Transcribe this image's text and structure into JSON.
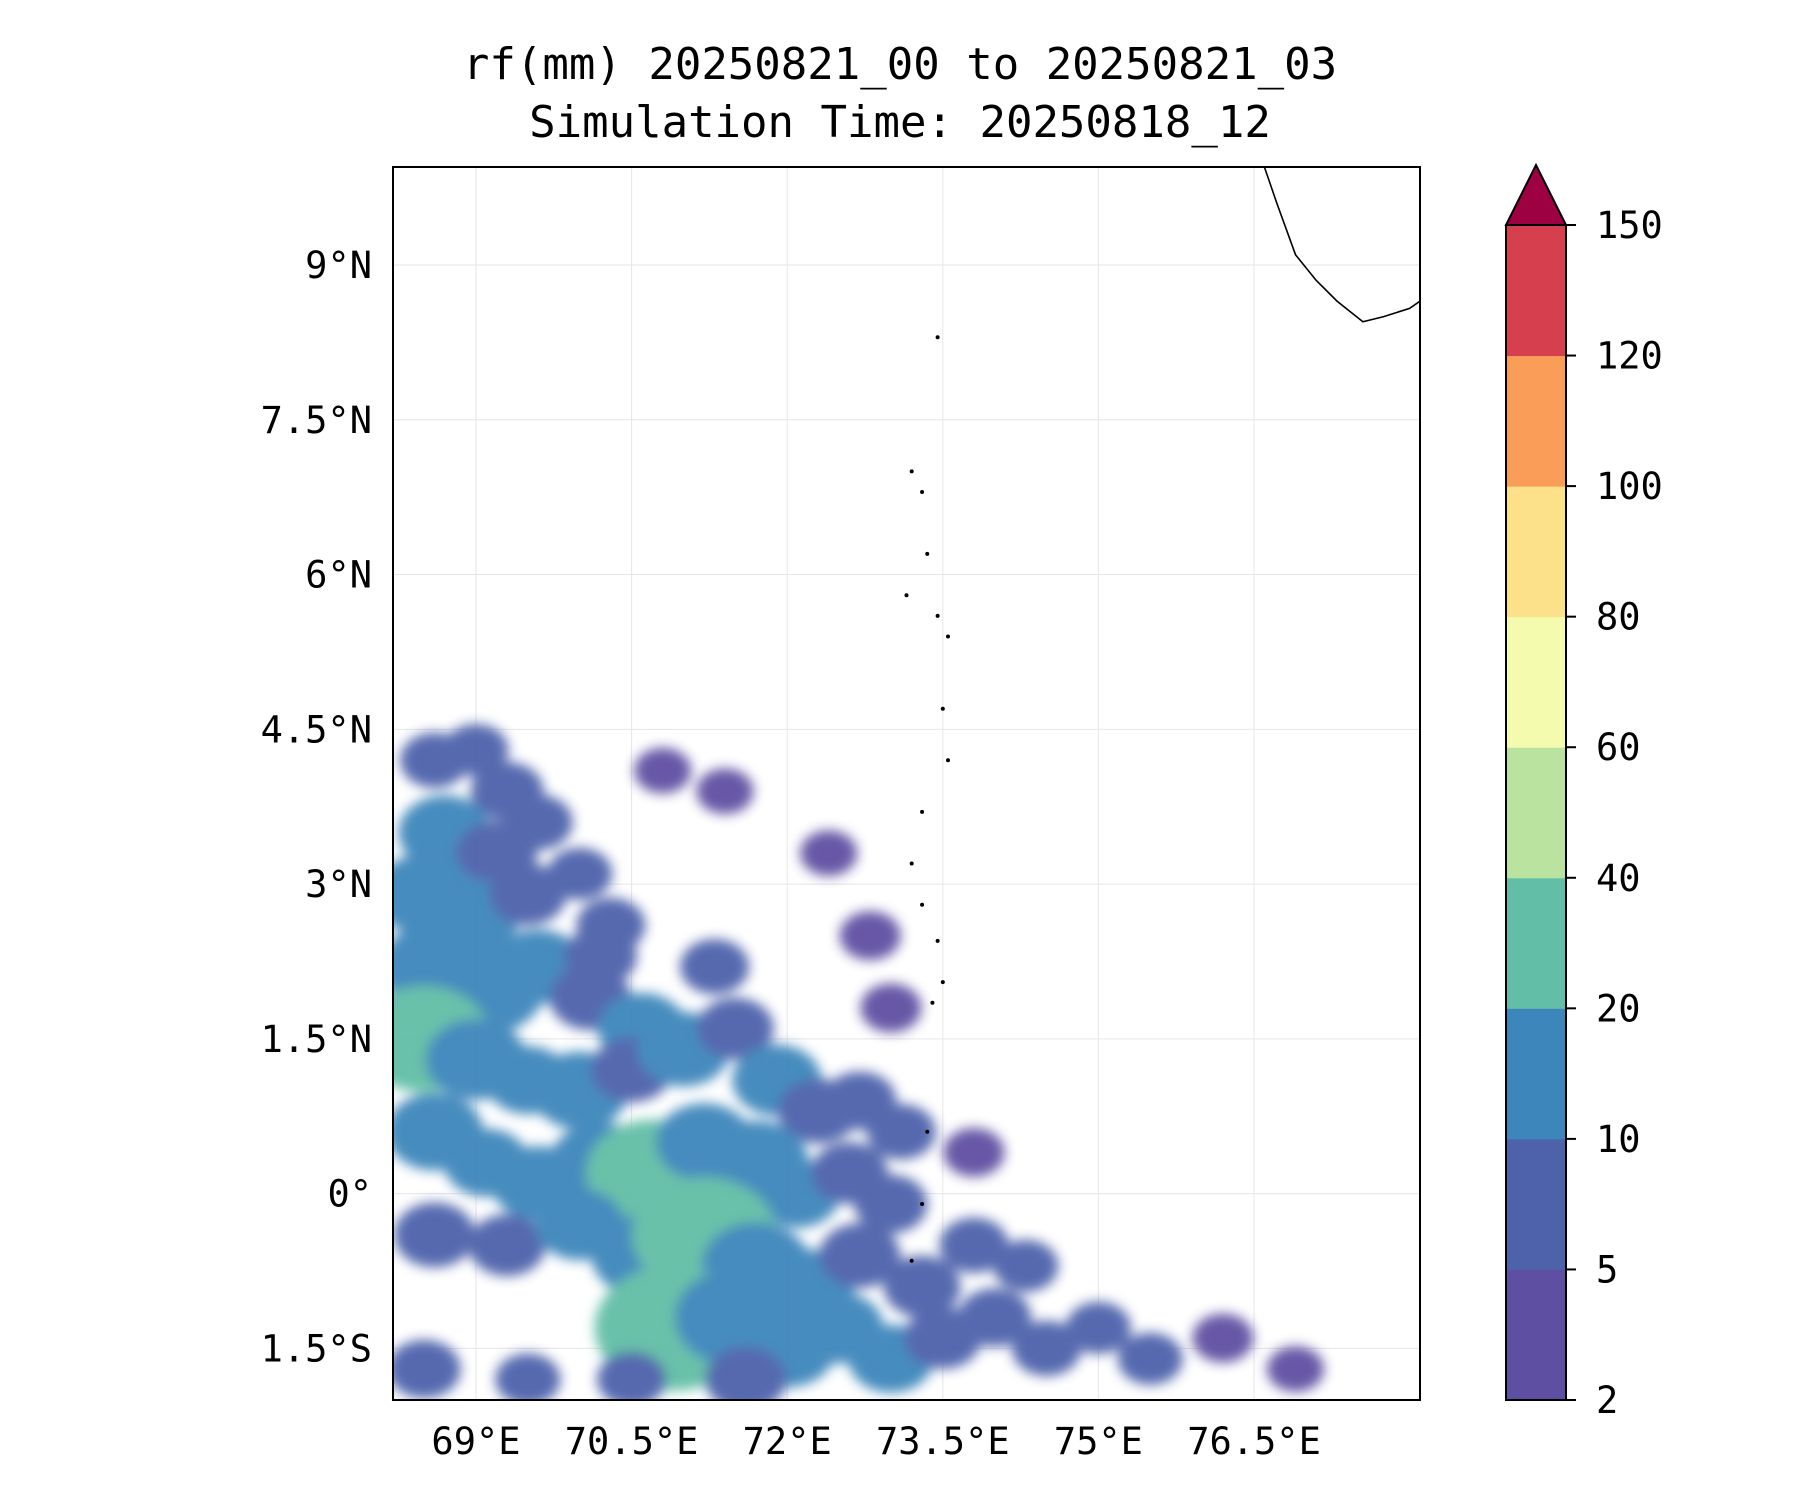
{
  "title": {
    "line1": "rf(mm) 20250821_00 to 20250821_03",
    "line2": "Simulation Time: 20250818_12"
  },
  "map": {
    "lon_range": [
      68.2,
      78.1
    ],
    "lat_range": [
      -2.0,
      9.95
    ],
    "x_ticks": [
      {
        "value": 69.0,
        "label": "69°E"
      },
      {
        "value": 70.5,
        "label": "70.5°E"
      },
      {
        "value": 72.0,
        "label": "72°E"
      },
      {
        "value": 73.5,
        "label": "73.5°E"
      },
      {
        "value": 75.0,
        "label": "75°E"
      },
      {
        "value": 76.5,
        "label": "76.5°E"
      }
    ],
    "y_ticks": [
      {
        "value": 9.0,
        "label": "9°N"
      },
      {
        "value": 7.5,
        "label": "7.5°N"
      },
      {
        "value": 6.0,
        "label": "6°N"
      },
      {
        "value": 4.5,
        "label": "4.5°N"
      },
      {
        "value": 3.0,
        "label": "3°N"
      },
      {
        "value": 1.5,
        "label": "1.5°N"
      },
      {
        "value": 0.0,
        "label": "0°"
      },
      {
        "value": -1.5,
        "label": "1.5°S"
      }
    ],
    "grid": true,
    "coastline": [
      [
        76.6,
        9.95
      ],
      [
        76.72,
        9.6
      ],
      [
        76.9,
        9.1
      ],
      [
        77.1,
        8.85
      ],
      [
        77.3,
        8.65
      ],
      [
        77.55,
        8.45
      ],
      [
        77.75,
        8.5
      ],
      [
        78.0,
        8.58
      ],
      [
        78.1,
        8.65
      ]
    ],
    "islands": [
      [
        73.45,
        8.3
      ],
      [
        73.2,
        7.0
      ],
      [
        73.3,
        6.8
      ],
      [
        73.35,
        6.2
      ],
      [
        73.15,
        5.8
      ],
      [
        73.45,
        5.6
      ],
      [
        73.55,
        5.4
      ],
      [
        73.5,
        4.7
      ],
      [
        73.55,
        4.2
      ],
      [
        73.3,
        3.7
      ],
      [
        73.2,
        3.2
      ],
      [
        73.3,
        2.8
      ],
      [
        73.45,
        2.45
      ],
      [
        73.5,
        2.05
      ],
      [
        73.4,
        1.85
      ],
      [
        73.35,
        0.6
      ],
      [
        73.3,
        -0.1
      ],
      [
        73.2,
        -0.65
      ]
    ]
  },
  "rain_cells": [
    {
      "lon": 68.6,
      "lat": 4.2,
      "v": 6
    },
    {
      "lon": 69.0,
      "lat": 4.3,
      "v": 5
    },
    {
      "lon": 69.3,
      "lat": 3.9,
      "v": 7
    },
    {
      "lon": 68.7,
      "lat": 3.5,
      "v": 12
    },
    {
      "lon": 69.2,
      "lat": 3.3,
      "v": 9
    },
    {
      "lon": 69.6,
      "lat": 3.6,
      "v": 6
    },
    {
      "lon": 68.5,
      "lat": 2.9,
      "v": 14
    },
    {
      "lon": 69.0,
      "lat": 2.7,
      "v": 11
    },
    {
      "lon": 69.5,
      "lat": 2.9,
      "v": 8
    },
    {
      "lon": 70.0,
      "lat": 3.1,
      "v": 5
    },
    {
      "lon": 70.3,
      "lat": 2.6,
      "v": 6
    },
    {
      "lon": 68.6,
      "lat": 2.2,
      "v": 16
    },
    {
      "lon": 69.1,
      "lat": 2.0,
      "v": 18
    },
    {
      "lon": 69.6,
      "lat": 2.2,
      "v": 12
    },
    {
      "lon": 70.1,
      "lat": 1.9,
      "v": 9
    },
    {
      "lon": 70.6,
      "lat": 1.6,
      "v": 11
    },
    {
      "lon": 68.5,
      "lat": 1.5,
      "v": 22
    },
    {
      "lon": 69.0,
      "lat": 1.3,
      "v": 14
    },
    {
      "lon": 69.5,
      "lat": 1.1,
      "v": 10
    },
    {
      "lon": 70.0,
      "lat": 1.0,
      "v": 13
    },
    {
      "lon": 70.5,
      "lat": 1.2,
      "v": 9
    },
    {
      "lon": 71.0,
      "lat": 1.4,
      "v": 12
    },
    {
      "lon": 71.5,
      "lat": 1.6,
      "v": 8
    },
    {
      "lon": 71.9,
      "lat": 1.1,
      "v": 11
    },
    {
      "lon": 72.3,
      "lat": 0.8,
      "v": 9
    },
    {
      "lon": 72.7,
      "lat": 0.9,
      "v": 7
    },
    {
      "lon": 73.1,
      "lat": 0.6,
      "v": 6
    },
    {
      "lon": 68.6,
      "lat": 0.6,
      "v": 13
    },
    {
      "lon": 69.1,
      "lat": 0.3,
      "v": 10
    },
    {
      "lon": 69.6,
      "lat": 0.1,
      "v": 12
    },
    {
      "lon": 70.2,
      "lat": 0.3,
      "v": 14
    },
    {
      "lon": 70.7,
      "lat": 0.2,
      "v": 22
    },
    {
      "lon": 71.2,
      "lat": 0.5,
      "v": 13
    },
    {
      "lon": 71.7,
      "lat": 0.3,
      "v": 15
    },
    {
      "lon": 72.1,
      "lat": 0.0,
      "v": 10
    },
    {
      "lon": 72.6,
      "lat": 0.2,
      "v": 8
    },
    {
      "lon": 73.0,
      "lat": -0.1,
      "v": 7
    },
    {
      "lon": 68.6,
      "lat": -0.4,
      "v": 9
    },
    {
      "lon": 69.3,
      "lat": -0.5,
      "v": 8
    },
    {
      "lon": 70.0,
      "lat": -0.3,
      "v": 11
    },
    {
      "lon": 70.6,
      "lat": -0.6,
      "v": 14
    },
    {
      "lon": 71.2,
      "lat": -0.4,
      "v": 25
    },
    {
      "lon": 71.7,
      "lat": -0.7,
      "v": 16
    },
    {
      "lon": 72.2,
      "lat": -0.9,
      "v": 12
    },
    {
      "lon": 72.7,
      "lat": -0.6,
      "v": 9
    },
    {
      "lon": 73.3,
      "lat": -0.9,
      "v": 8
    },
    {
      "lon": 73.8,
      "lat": -0.5,
      "v": 6
    },
    {
      "lon": 70.9,
      "lat": -1.3,
      "v": 28
    },
    {
      "lon": 71.5,
      "lat": -1.2,
      "v": 19
    },
    {
      "lon": 72.0,
      "lat": -1.5,
      "v": 13
    },
    {
      "lon": 72.5,
      "lat": -1.3,
      "v": 11
    },
    {
      "lon": 73.0,
      "lat": -1.6,
      "v": 10
    },
    {
      "lon": 73.5,
      "lat": -1.4,
      "v": 8
    },
    {
      "lon": 74.0,
      "lat": -1.2,
      "v": 7
    },
    {
      "lon": 74.5,
      "lat": -1.5,
      "v": 6
    },
    {
      "lon": 75.0,
      "lat": -1.3,
      "v": 5
    },
    {
      "lon": 75.5,
      "lat": -1.6,
      "v": 5
    },
    {
      "lon": 76.2,
      "lat": -1.4,
      "v": 4
    },
    {
      "lon": 76.9,
      "lat": -1.7,
      "v": 3
    },
    {
      "lon": 68.5,
      "lat": -1.7,
      "v": 7
    },
    {
      "lon": 69.5,
      "lat": -1.8,
      "v": 5
    },
    {
      "lon": 70.5,
      "lat": -1.8,
      "v": 6
    },
    {
      "lon": 71.6,
      "lat": -1.8,
      "v": 9
    },
    {
      "lon": 72.8,
      "lat": 2.5,
      "v": 4
    },
    {
      "lon": 72.4,
      "lat": 3.3,
      "v": 3
    },
    {
      "lon": 71.4,
      "lat": 3.9,
      "v": 3
    },
    {
      "lon": 70.8,
      "lat": 4.1,
      "v": 3
    },
    {
      "lon": 73.0,
      "lat": 1.8,
      "v": 4
    },
    {
      "lon": 73.8,
      "lat": 0.4,
      "v": 4
    },
    {
      "lon": 74.3,
      "lat": -0.7,
      "v": 5
    },
    {
      "lon": 71.3,
      "lat": 2.2,
      "v": 6
    },
    {
      "lon": 70.2,
      "lat": 2.3,
      "v": 7
    }
  ],
  "colorbar": {
    "levels": [
      2,
      5,
      10,
      20,
      40,
      60,
      80,
      100,
      120,
      150
    ],
    "labels": [
      "2",
      "5",
      "10",
      "20",
      "40",
      "60",
      "80",
      "100",
      "120",
      "150"
    ],
    "colors": [
      "#5e4fa2",
      "#4e62ab",
      "#3c86bb",
      "#62bea6",
      "#bbe3a0",
      "#f4faae",
      "#fde18a",
      "#f99d59",
      "#d6404e"
    ],
    "extend_color": "#9e0142"
  }
}
